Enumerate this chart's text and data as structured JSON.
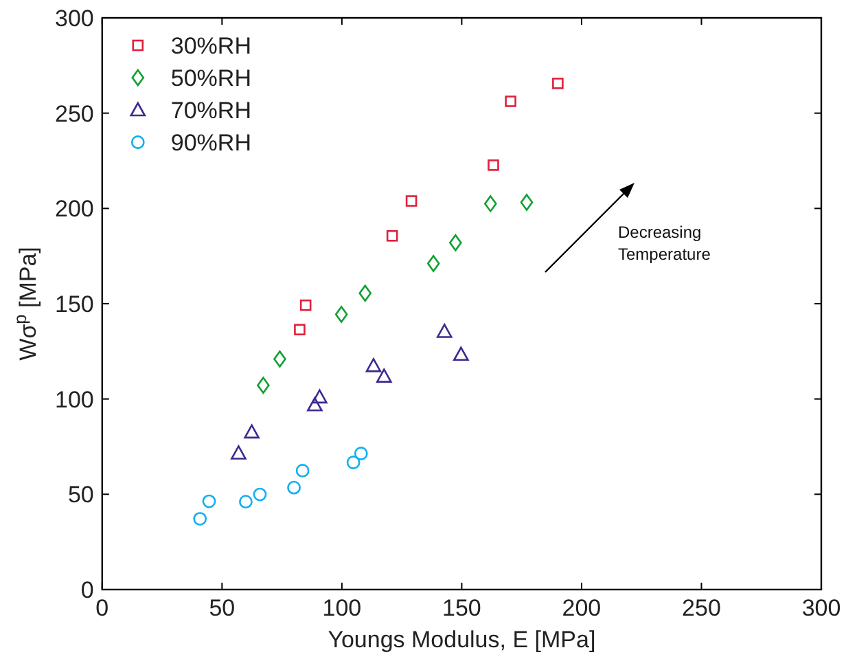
{
  "chart_data": {
    "type": "scatter",
    "xlabel": "Youngs Modulus, E [MPa]",
    "ylabel": "Wσ$^{p}$ [MPa]",
    "xlim": [
      0,
      300
    ],
    "xticks": [
      0,
      50,
      100,
      150,
      200,
      250,
      300
    ],
    "ylim": [
      0,
      300
    ],
    "yticks": [
      0,
      50,
      100,
      150,
      200,
      250,
      300
    ],
    "grid": false,
    "legend": "top left",
    "annotations": [
      "Decreasing\nTemperature"
    ],
    "series": [
      {
        "name": "30%RH",
        "color": "#e0203c",
        "marker": "square",
        "x": [
          82.4,
          84.9,
          121,
          129,
          163.2,
          170.4,
          190.1
        ],
        "values": [
          136.4,
          149.2,
          185.6,
          203.9,
          222.7,
          256.2,
          265.6
        ]
      },
      {
        "name": "50%RH",
        "color": "#10a030",
        "marker": "diamond",
        "x": [
          67.2,
          74.1,
          99.8,
          109.7,
          138.2,
          147.4,
          162,
          177.1
        ],
        "values": [
          107.2,
          121,
          144.4,
          155.5,
          171.1,
          182,
          202.5,
          203.2
        ]
      },
      {
        "name": "70%RH",
        "color": "#402890",
        "marker": "triangle",
        "x": [
          56.9,
          62.4,
          88.7,
          90.7,
          113.2,
          117.6,
          142.8,
          149.7
        ],
        "values": [
          71.6,
          82.6,
          96.9,
          101,
          117.4,
          111.9,
          135.4,
          123.4
        ]
      },
      {
        "name": "90%RH",
        "color": "#10b0f0",
        "marker": "circle",
        "x": [
          40.8,
          44.6,
          59.9,
          65.8,
          80,
          83.6,
          104.8,
          108
        ],
        "values": [
          37.1,
          46.3,
          46.1,
          49.9,
          53.5,
          62.4,
          66.7,
          71.4
        ]
      }
    ]
  }
}
